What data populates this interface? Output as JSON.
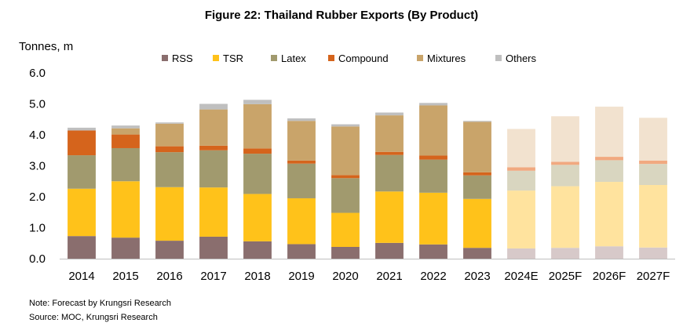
{
  "chart_data": {
    "type": "bar",
    "stacked": true,
    "title": "Figure 22: Thailand Rubber Exports (By Product)",
    "ylabel": "Tonnes, m",
    "ylim": [
      0,
      6
    ],
    "yticks": [
      "0.0",
      "1.0",
      "2.0",
      "3.0",
      "4.0",
      "5.0",
      "6.0"
    ],
    "ytick_values": [
      0,
      1,
      2,
      3,
      4,
      5,
      6
    ],
    "grid": false,
    "legend_position": "top",
    "categories": [
      "2014",
      "2015",
      "2016",
      "2017",
      "2018",
      "2019",
      "2020",
      "2021",
      "2022",
      "2023",
      "2024E",
      "2025F",
      "2026F",
      "2027F"
    ],
    "forecast_categories": [
      "2024E",
      "2025F",
      "2026F",
      "2027F"
    ],
    "series": [
      {
        "name": "RSS",
        "color": "#8A6E6E",
        "forecast_color": "#D7C9C9",
        "values": [
          0.73,
          0.68,
          0.58,
          0.71,
          0.56,
          0.47,
          0.38,
          0.51,
          0.46,
          0.35,
          0.33,
          0.35,
          0.4,
          0.36
        ]
      },
      {
        "name": "TSR",
        "color": "#FFC21A",
        "forecast_color": "#FFE39E",
        "values": [
          1.53,
          1.82,
          1.73,
          1.59,
          1.53,
          1.48,
          1.1,
          1.66,
          1.67,
          1.58,
          1.87,
          1.99,
          2.08,
          2.02
        ]
      },
      {
        "name": "Latex",
        "color": "#A19A6E",
        "forecast_color": "#D9D6C0",
        "values": [
          1.08,
          1.07,
          1.13,
          1.2,
          1.3,
          1.12,
          1.12,
          1.18,
          1.07,
          0.76,
          0.64,
          0.69,
          0.7,
          0.68
        ]
      },
      {
        "name": "Compound",
        "color": "#D5641C",
        "forecast_color": "#F1A980",
        "values": [
          0.8,
          0.44,
          0.19,
          0.15,
          0.17,
          0.1,
          0.1,
          0.1,
          0.13,
          0.1,
          0.11,
          0.1,
          0.11,
          0.11
        ]
      },
      {
        "name": "Mixtures",
        "color": "#C9A46A",
        "forecast_color": "#F2E2CF",
        "values": [
          0.0,
          0.2,
          0.73,
          1.17,
          1.43,
          1.28,
          1.57,
          1.18,
          1.62,
          1.63,
          1.24,
          1.47,
          1.62,
          1.38
        ]
      },
      {
        "name": "Others",
        "color": "#BFBFBF",
        "forecast_color": "#E6E6E6",
        "values": [
          0.09,
          0.09,
          0.04,
          0.18,
          0.14,
          0.08,
          0.07,
          0.09,
          0.08,
          0.03,
          0.0,
          0.0,
          0.0,
          0.0
        ]
      }
    ]
  },
  "notes": {
    "note": "Note: Forecast by Krungsri Research",
    "source": "Source: MOC, Krungsri Research"
  }
}
